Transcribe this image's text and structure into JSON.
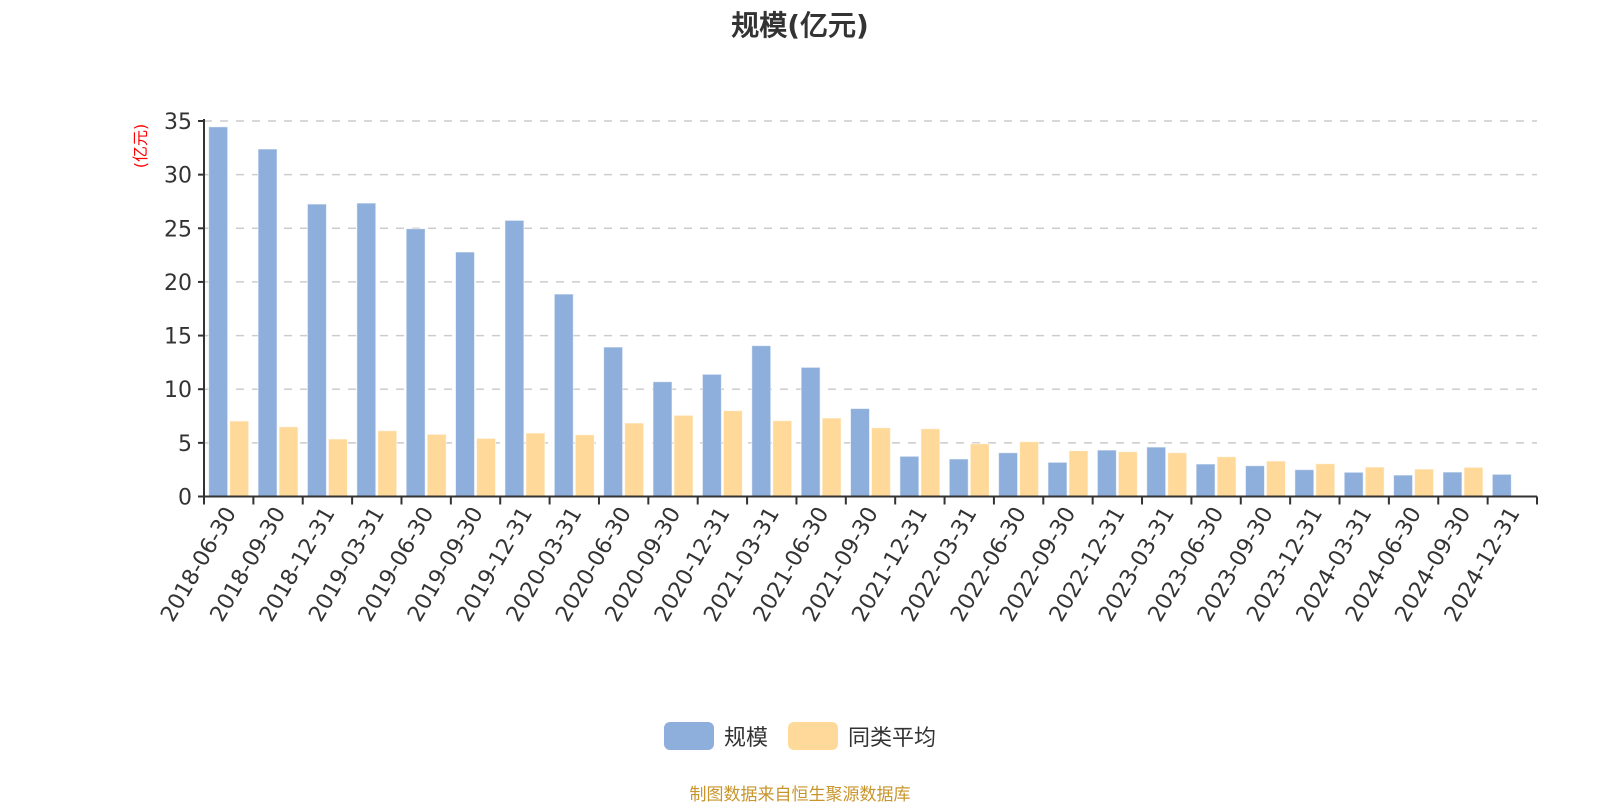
{
  "title": "规模(亿元)",
  "footer": "制图数据来自恒生聚源数据库",
  "legend": [
    {
      "label": "规模",
      "color": "#8eaedb"
    },
    {
      "label": "同类平均",
      "color": "#fed999"
    }
  ],
  "chart_data": {
    "type": "bar",
    "title": "规模(亿元)",
    "xlabel": "",
    "ylabel": "(亿元)",
    "ylim": [
      0,
      35
    ],
    "yticks": [
      0,
      5,
      10,
      15,
      20,
      25,
      30,
      35
    ],
    "grid": true,
    "legend_position": "bottom",
    "categories": [
      "2018-06-30",
      "2018-09-30",
      "2018-12-31",
      "2019-03-31",
      "2019-06-30",
      "2019-09-30",
      "2019-12-31",
      "2020-03-31",
      "2020-06-30",
      "2020-09-30",
      "2020-12-31",
      "2021-03-31",
      "2021-06-30",
      "2021-09-30",
      "2021-12-31",
      "2022-03-31",
      "2022-06-30",
      "2022-09-30",
      "2022-12-31",
      "2023-03-31",
      "2023-06-30",
      "2023-09-30",
      "2023-12-31",
      "2024-03-31",
      "2024-06-30",
      "2024-09-30",
      "2024-12-31"
    ],
    "series": [
      {
        "name": "规模",
        "color": "#8eaedb",
        "values": [
          34.46,
          32.39,
          27.26,
          27.35,
          24.96,
          22.79,
          25.74,
          18.87,
          13.93,
          10.7,
          11.39,
          14.06,
          12.04,
          8.2,
          3.75,
          3.5,
          4.08,
          3.19,
          4.33,
          4.61,
          3.03,
          2.87,
          2.5,
          2.26,
          2.0,
          2.28,
          2.07
        ]
      },
      {
        "name": "同类平均",
        "color": "#fed999",
        "values": [
          7.04,
          6.5,
          5.36,
          6.13,
          5.8,
          5.42,
          5.92,
          5.76,
          6.85,
          7.57,
          8.0,
          7.07,
          7.32,
          6.41,
          6.32,
          4.92,
          5.11,
          4.27,
          4.18,
          4.08,
          3.71,
          3.31,
          3.06,
          2.75,
          2.56,
          2.72,
          null
        ]
      }
    ]
  }
}
